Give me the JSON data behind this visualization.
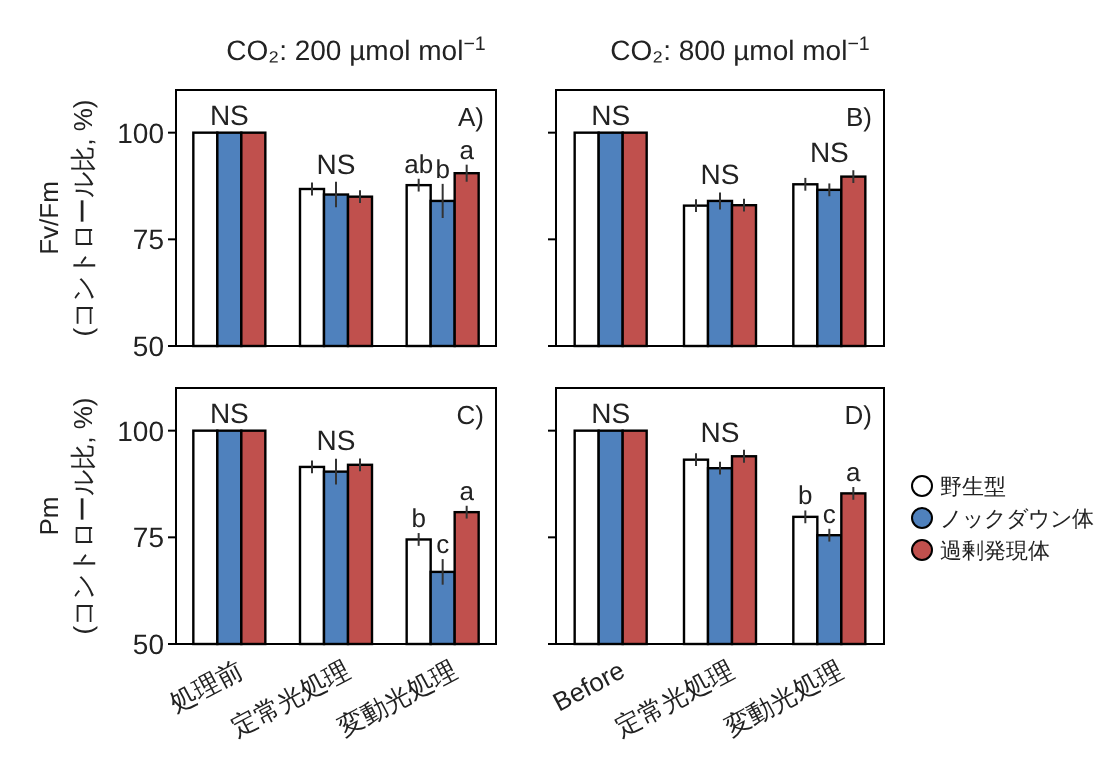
{
  "chart_data": [
    {
      "type": "bar",
      "title": "CO₂: 200 µmol mol$^{−1}$",
      "ylabel": "Fv/Fm\n(コントロール比, %)",
      "categories": [
        "処理前",
        "定常光処理",
        "変動光処理"
      ],
      "ylim": [
        50,
        110
      ],
      "yticks": [
        50,
        75,
        100
      ],
      "tick_labels": "y",
      "series": [
        {
          "color": "#ffffff",
          "values": [
            100,
            86.8,
            87.7
          ],
          "errors": [
            null,
            1.5,
            1.5
          ],
          "value_labels": [
            null,
            null,
            "ab"
          ]
        },
        {
          "color": "#4f81bd",
          "values": [
            100,
            85.5,
            84
          ],
          "errors": [
            null,
            3,
            4
          ],
          "value_labels": [
            null,
            null,
            "b"
          ]
        },
        {
          "color": "#c0504d",
          "values": [
            100,
            85,
            90.5
          ],
          "errors": [
            null,
            1.5,
            2
          ],
          "value_labels": [
            null,
            null,
            "a"
          ]
        }
      ],
      "annotations": [
        "A)",
        {
          "text": "NS",
          "x": "処理前",
          "y": 100
        },
        {
          "text": "NS",
          "x": "定常光処理",
          "y": 86.8
        }
      ]
    },
    {
      "type": "bar",
      "title": "CO₂: 800 µmol mol$^{−1}$",
      "categories": [
        "Before",
        "定常光処理",
        "変動光処理"
      ],
      "ylim": [
        50,
        110
      ],
      "yticks": [
        50,
        75,
        100
      ],
      "tick_labels": false,
      "series": [
        {
          "color": "#ffffff",
          "values": [
            100,
            82.9,
            87.9
          ],
          "errors": [
            null,
            1.5,
            1.5
          ]
        },
        {
          "color": "#4f81bd",
          "values": [
            100,
            84,
            86.6
          ],
          "errors": [
            null,
            2,
            1.5
          ]
        },
        {
          "color": "#c0504d",
          "values": [
            100,
            83,
            89.7
          ],
          "errors": [
            null,
            1.5,
            1.5
          ]
        }
      ],
      "annotations": [
        "B)",
        {
          "text": "NS",
          "x": "Before",
          "y": 100
        },
        {
          "text": "NS",
          "x": "定常光処理",
          "y": 86
        },
        {
          "text": "NS",
          "x": "変動光処理",
          "y": 91.2
        }
      ]
    },
    {
      "type": "bar",
      "ylabel": "Pm\n(コントロール比, %)",
      "categories": [
        "処理前",
        "定常光処理",
        "変動光処理"
      ],
      "ylim": [
        50,
        110
      ],
      "yticks": [
        50,
        75,
        100
      ],
      "series": [
        {
          "color": "#ffffff",
          "values": [
            100,
            91.5,
            74.5
          ],
          "errors": [
            null,
            1.5,
            1.5
          ],
          "value_labels": [
            null,
            null,
            "b"
          ]
        },
        {
          "color": "#4f81bd",
          "values": [
            100,
            90.4,
            66.9
          ],
          "errors": [
            null,
            3,
            3
          ],
          "value_labels": [
            null,
            null,
            "c"
          ]
        },
        {
          "color": "#c0504d",
          "values": [
            100,
            92,
            80.9
          ],
          "errors": [
            null,
            1.5,
            1.5
          ],
          "value_labels": [
            null,
            null,
            "a"
          ]
        }
      ],
      "annotations": [
        "C)",
        {
          "text": "NS",
          "x": "処理前",
          "y": 100
        },
        {
          "text": "NS",
          "x": "定常光処理",
          "y": 93.4
        }
      ]
    },
    {
      "type": "bar",
      "categories": [
        "Before",
        "定常光処理",
        "変動光処理"
      ],
      "ylim": [
        50,
        110
      ],
      "yticks": [
        50,
        75,
        100
      ],
      "tick_labels": "x",
      "legend": "right",
      "series": [
        {
          "name": "野生型",
          "color": "#ffffff",
          "values": [
            100,
            93.2,
            79.8
          ],
          "errors": [
            null,
            1.5,
            1.5
          ],
          "value_labels": [
            null,
            null,
            "b"
          ]
        },
        {
          "name": "ノックダウン体",
          "color": "#4f81bd",
          "values": [
            100,
            91.2,
            75.5
          ],
          "errors": [
            null,
            1.5,
            1.5
          ],
          "value_labels": [
            null,
            null,
            "c"
          ]
        },
        {
          "name": "過剰発現体",
          "color": "#c0504d",
          "values": [
            100,
            94,
            85.3
          ],
          "errors": [
            null,
            1.5,
            1.5
          ],
          "value_labels": [
            null,
            null,
            "a"
          ]
        }
      ],
      "annotations": [
        "D)",
        {
          "text": "NS",
          "x": "Before",
          "y": 100
        },
        {
          "text": "NS",
          "x": "定常光処理",
          "y": 95.5
        }
      ]
    }
  ]
}
